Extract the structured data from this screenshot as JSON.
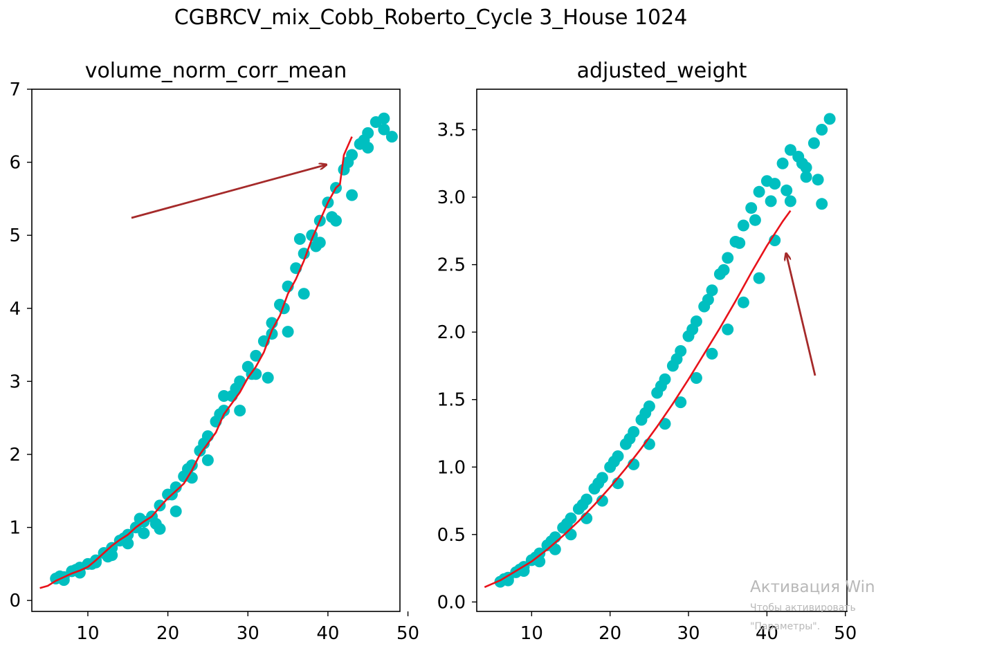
{
  "figure": {
    "suptitle": "CGBRCV_mix_Cobb_Roberto_Cycle 3_House 1024"
  },
  "chart_data": [
    {
      "type": "scatter",
      "title": "volume_norm_corr_mean",
      "xlim": [
        3,
        49
      ],
      "ylim": [
        -0.15,
        7
      ],
      "xticks": [
        10,
        20,
        30,
        40,
        50
      ],
      "yticks": [
        0,
        1,
        2,
        3,
        4,
        5,
        6,
        7
      ],
      "scatter_color": "#00bfc0",
      "line_color": "#e8121a",
      "annotation_arrow_color": "#a52a2a",
      "scatter": {
        "x": [
          6,
          7,
          8,
          9,
          10,
          11,
          12,
          13,
          14,
          15,
          16,
          17,
          18,
          19,
          20,
          21,
          22,
          23,
          24,
          25,
          26,
          27,
          28,
          29,
          30,
          31,
          32,
          33,
          34,
          35,
          36,
          37,
          38,
          39,
          40,
          41,
          42,
          43,
          44,
          45,
          46,
          47,
          48,
          6.5,
          8.5,
          10.5,
          12.5,
          14.5,
          16.5,
          18.5,
          20.5,
          22.5,
          24.5,
          26.5,
          28.5,
          30.5,
          32.5,
          34.5,
          36.5,
          38.5,
          40.5,
          42.5,
          44.5,
          7,
          9,
          11,
          13,
          15,
          17,
          19,
          21,
          23,
          25,
          27,
          29,
          31,
          33,
          35,
          37,
          39,
          41,
          43,
          45,
          47
        ],
        "y": [
          0.3,
          0.32,
          0.4,
          0.45,
          0.5,
          0.55,
          0.65,
          0.72,
          0.82,
          0.9,
          1.0,
          1.08,
          1.15,
          1.3,
          1.45,
          1.55,
          1.7,
          1.85,
          2.05,
          2.25,
          2.45,
          2.6,
          2.8,
          3.0,
          3.2,
          3.35,
          3.55,
          3.8,
          4.05,
          4.3,
          4.55,
          4.75,
          5.0,
          5.2,
          5.45,
          5.65,
          5.9,
          6.1,
          6.25,
          6.4,
          6.55,
          6.45,
          6.35,
          0.33,
          0.42,
          0.5,
          0.6,
          0.85,
          1.12,
          1.05,
          1.45,
          1.8,
          2.15,
          2.55,
          2.9,
          3.1,
          3.05,
          4.0,
          4.95,
          4.85,
          5.25,
          6.0,
          6.3,
          0.28,
          0.38,
          0.52,
          0.62,
          0.78,
          0.92,
          0.98,
          1.22,
          1.68,
          1.92,
          2.8,
          2.6,
          3.1,
          3.65,
          3.68,
          4.2,
          4.9,
          5.2,
          5.55,
          6.2,
          6.6
        ]
      },
      "line": {
        "x": [
          4,
          5,
          6,
          7,
          8,
          9,
          10,
          11,
          12,
          13,
          14,
          15,
          16,
          17,
          18,
          19,
          20,
          21,
          22,
          23,
          24,
          25,
          26,
          27,
          28,
          29,
          30,
          31,
          32,
          33,
          34,
          35,
          36,
          37,
          38,
          39,
          40,
          41,
          41.5,
          42,
          43
        ],
        "y": [
          0.17,
          0.2,
          0.27,
          0.32,
          0.37,
          0.41,
          0.46,
          0.55,
          0.65,
          0.75,
          0.83,
          0.9,
          1.0,
          1.08,
          1.15,
          1.28,
          1.4,
          1.5,
          1.6,
          1.78,
          2.0,
          2.15,
          2.3,
          2.55,
          2.7,
          2.85,
          3.05,
          3.2,
          3.4,
          3.7,
          3.9,
          4.2,
          4.4,
          4.65,
          4.95,
          5.2,
          5.45,
          5.65,
          5.7,
          6.1,
          6.35
        ]
      }
    },
    {
      "type": "scatter",
      "title": "adjusted_weight",
      "xlim": [
        3,
        50.2
      ],
      "ylim": [
        -0.07,
        3.8
      ],
      "xticks": [
        10,
        20,
        30,
        40,
        50
      ],
      "yticks": [
        0.0,
        0.5,
        1.0,
        1.5,
        2.0,
        2.5,
        3.0,
        3.5
      ],
      "scatter_color": "#00bfc0",
      "line_color": "#e8121a",
      "annotation_arrow_color": "#a52a2a",
      "scatter": {
        "x": [
          6,
          7,
          8,
          9,
          10,
          11,
          12,
          13,
          14,
          15,
          16,
          17,
          18,
          19,
          20,
          21,
          22,
          23,
          24,
          25,
          26,
          27,
          28,
          29,
          30,
          31,
          32,
          33,
          34,
          35,
          36,
          37,
          38,
          39,
          40,
          41,
          42,
          43,
          44,
          45,
          46,
          47,
          48,
          6.5,
          8.5,
          10.5,
          12.5,
          14.5,
          16.5,
          18.5,
          20.5,
          22.5,
          24.5,
          26.5,
          28.5,
          30.5,
          32.5,
          34.5,
          36.5,
          38.5,
          40.5,
          42.5,
          44.5,
          46.5,
          7,
          9,
          11,
          13,
          15,
          17,
          19,
          21,
          23,
          25,
          27,
          29,
          31,
          33,
          35,
          37,
          39,
          41,
          43,
          45,
          47
        ],
        "y": [
          0.15,
          0.18,
          0.22,
          0.26,
          0.31,
          0.36,
          0.42,
          0.48,
          0.55,
          0.62,
          0.69,
          0.76,
          0.84,
          0.92,
          1.0,
          1.08,
          1.17,
          1.26,
          1.35,
          1.45,
          1.55,
          1.65,
          1.75,
          1.86,
          1.97,
          2.08,
          2.19,
          2.31,
          2.43,
          2.55,
          2.67,
          2.79,
          2.92,
          3.04,
          3.12,
          3.1,
          3.25,
          3.35,
          3.3,
          3.22,
          3.4,
          3.5,
          3.58,
          0.17,
          0.24,
          0.33,
          0.45,
          0.58,
          0.72,
          0.88,
          1.04,
          1.21,
          1.4,
          1.6,
          1.8,
          2.02,
          2.24,
          2.46,
          2.66,
          2.83,
          2.97,
          3.05,
          3.25,
          3.13,
          0.16,
          0.23,
          0.3,
          0.39,
          0.5,
          0.62,
          0.75,
          0.88,
          1.02,
          1.17,
          1.32,
          1.48,
          1.66,
          1.84,
          2.02,
          2.22,
          2.4,
          2.68,
          2.97,
          3.15,
          2.95
        ]
      },
      "line": {
        "x": [
          4,
          6,
          8,
          10,
          12,
          14,
          16,
          18,
          20,
          22,
          24,
          26,
          28,
          30,
          32,
          34,
          36,
          38,
          40,
          42,
          43
        ],
        "y": [
          0.11,
          0.16,
          0.23,
          0.3,
          0.39,
          0.49,
          0.6,
          0.72,
          0.85,
          0.99,
          1.14,
          1.3,
          1.47,
          1.65,
          1.84,
          2.03,
          2.23,
          2.44,
          2.64,
          2.82,
          2.9
        ]
      }
    }
  ],
  "overlay": {
    "watermark_line1": "Активация Win",
    "watermark_line2": "Чтобы активировать",
    "watermark_line3": "\"Параметры\"."
  }
}
